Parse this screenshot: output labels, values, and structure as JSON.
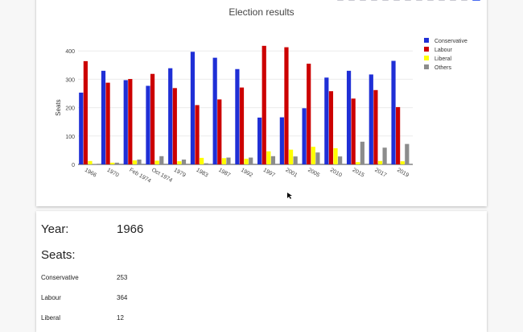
{
  "chart_card": {
    "modebar_icons": [
      "camera-icon",
      "zoom-icon",
      "pan-icon",
      "box-select-icon",
      "lasso-icon",
      "zoom-in-icon",
      "zoom-out-icon",
      "autoscale-icon",
      "reset-axes-icon",
      "spike-lines-icon",
      "hover-closest-icon",
      "hover-compare-icon",
      "plotly-logo-icon"
    ]
  },
  "chart_data": {
    "type": "bar",
    "title": "Election results",
    "xlabel": "",
    "ylabel": "Seats",
    "ylim": [
      0,
      420
    ],
    "yticks": [
      0,
      100,
      200,
      300,
      400
    ],
    "grid": true,
    "legend_position": "right",
    "categories": [
      "1966",
      "1970",
      "Feb 1974",
      "Oct 1974",
      "1979",
      "1983",
      "1987",
      "1992",
      "1997",
      "2001",
      "2005",
      "2010",
      "2015",
      "2017",
      "2019"
    ],
    "series": [
      {
        "name": "Conservative",
        "color": "#1f2fd6",
        "values": [
          253,
          330,
          297,
          277,
          339,
          397,
          376,
          336,
          165,
          166,
          198,
          306,
          330,
          317,
          365
        ]
      },
      {
        "name": "Labour",
        "color": "#cc0000",
        "values": [
          364,
          288,
          301,
          319,
          269,
          209,
          229,
          271,
          418,
          413,
          355,
          258,
          232,
          262,
          202
        ]
      },
      {
        "name": "Liberal",
        "color": "#ffff00",
        "values": [
          12,
          6,
          14,
          13,
          11,
          23,
          22,
          20,
          46,
          52,
          62,
          57,
          8,
          12,
          11
        ]
      },
      {
        "name": "Others",
        "color": "#8c8c8c",
        "values": [
          1,
          6,
          17,
          29,
          17,
          4,
          24,
          24,
          29,
          28,
          42,
          28,
          80,
          59,
          72
        ]
      }
    ]
  },
  "details": {
    "year_label": "Year:",
    "year_value": "1966",
    "seats_label": "Seats:",
    "rows": [
      {
        "label": "Conservative",
        "value": "253"
      },
      {
        "label": "Labour",
        "value": "364"
      },
      {
        "label": "Liberal",
        "value": "12"
      }
    ]
  }
}
